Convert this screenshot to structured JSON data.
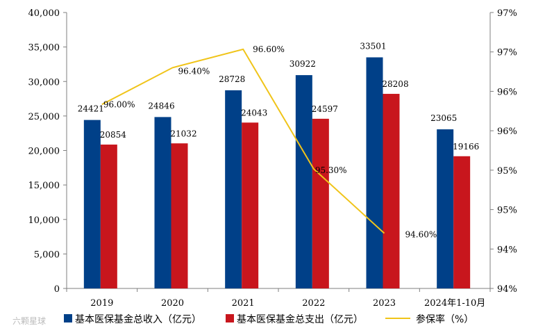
{
  "chart_data": {
    "type": "bar",
    "categories": [
      "2019",
      "2020",
      "2021",
      "2022",
      "2023",
      "2024年1-10月"
    ],
    "series": [
      {
        "name": "基本医保基金总收入（亿元）",
        "kind": "bar",
        "axis": "left",
        "color": "#004088",
        "values": [
          24421,
          24846,
          28728,
          30922,
          33501,
          23065
        ]
      },
      {
        "name": "基本医保基金总支出（亿元）",
        "kind": "bar",
        "axis": "left",
        "color": "#c8161d",
        "values": [
          20854,
          21032,
          24043,
          24597,
          28208,
          19166
        ]
      },
      {
        "name": "参保率（%）",
        "kind": "line",
        "axis": "right",
        "color": "#f0c419",
        "values": [
          96.0,
          96.4,
          96.6,
          95.3,
          94.6,
          null
        ],
        "labels": [
          "96.00%",
          "96.40%",
          "96.60%",
          "95.30%",
          "94.60%",
          null
        ]
      }
    ],
    "ylim_left": [
      0,
      40000
    ],
    "yticks_left": [
      "0",
      "5,000",
      "10,000",
      "15,000",
      "20,000",
      "25,000",
      "30,000",
      "35,000",
      "40,000"
    ],
    "ylim_right": [
      94,
      97
    ],
    "yticks_right": [
      "94%",
      "94%",
      "95%",
      "95%",
      "96%",
      "96%",
      "97%",
      "97%"
    ],
    "legend_position": "bottom",
    "grid": false
  },
  "watermark": "六颗星球"
}
